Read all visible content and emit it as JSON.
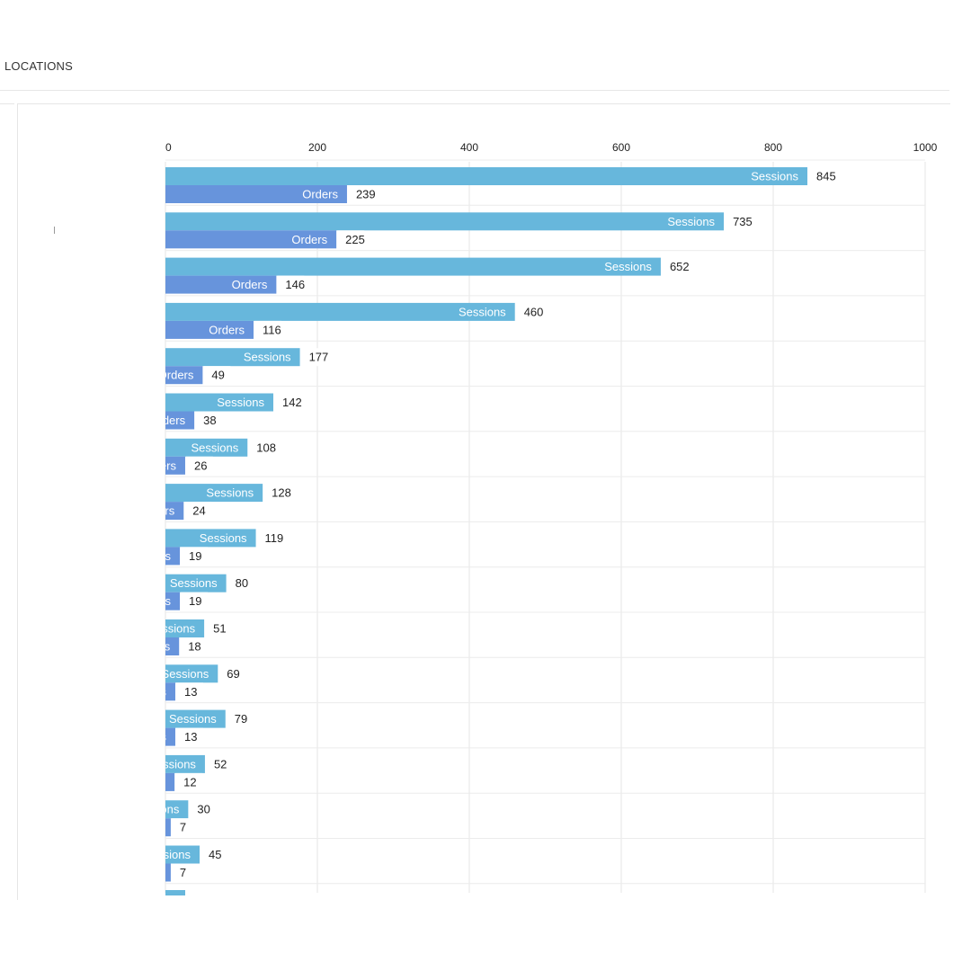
{
  "section": {
    "title": "LOCATIONS"
  },
  "chart_data": {
    "type": "bar",
    "orientation": "horizontal",
    "categories": [
      "",
      "",
      "",
      "",
      "",
      "",
      "",
      "",
      "",
      "",
      "",
      "",
      "",
      "",
      "",
      ""
    ],
    "series": [
      {
        "name": "Sessions",
        "color": "#67b7dc",
        "values": [
          845,
          735,
          652,
          460,
          177,
          142,
          108,
          128,
          119,
          80,
          51,
          69,
          79,
          52,
          30,
          45
        ]
      },
      {
        "name": "Orders",
        "color": "#6794dc",
        "values": [
          239,
          225,
          146,
          116,
          49,
          38,
          26,
          24,
          19,
          19,
          18,
          13,
          13,
          12,
          7,
          7
        ]
      }
    ],
    "xlim": [
      0,
      1000
    ],
    "x_ticks": [
      "0",
      "200",
      "400",
      "600",
      "800",
      "1000"
    ],
    "grid": true,
    "bar_labels": "inside-end series name, value outside"
  }
}
